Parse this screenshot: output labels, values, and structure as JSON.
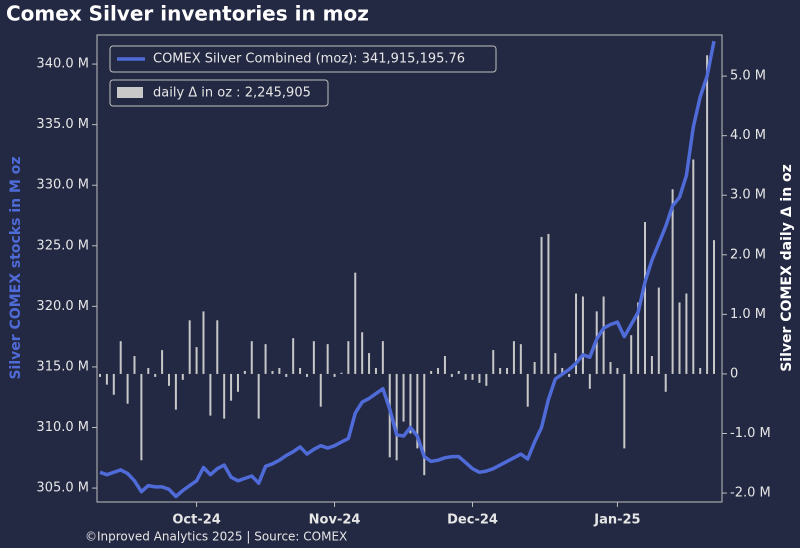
{
  "chart_data": {
    "type": "line",
    "title": "Comex Silver inventories in moz",
    "ylabel": "Silver COMEX stocks in M oz",
    "y2label": "Silver COMEX daily Δ in oz",
    "footer": "©Inproved Analytics 2025 | Source: COMEX",
    "categories": [
      null,
      null,
      null,
      null,
      null,
      null,
      null,
      null,
      null,
      null,
      null,
      null,
      null,
      null,
      "Oct-24",
      null,
      null,
      null,
      null,
      null,
      null,
      null,
      null,
      null,
      null,
      null,
      null,
      null,
      null,
      null,
      null,
      null,
      null,
      null,
      "Nov-24",
      null,
      null,
      null,
      null,
      null,
      null,
      null,
      null,
      null,
      null,
      null,
      null,
      null,
      null,
      null,
      null,
      null,
      null,
      null,
      "Dec-24",
      null,
      null,
      null,
      null,
      null,
      null,
      null,
      null,
      null,
      null,
      null,
      null,
      null,
      null,
      null,
      null,
      null,
      null,
      null,
      null,
      "Jan-25",
      null,
      null,
      null,
      null,
      null,
      null,
      null,
      null,
      null,
      null,
      null,
      null,
      null,
      null
    ],
    "series": [
      {
        "name": "COMEX Silver Combined (moz): 341,915,195.76",
        "type": "line",
        "color": "#4f6bd8",
        "values": [
          306.3,
          306.1,
          306.3,
          306.5,
          306.2,
          305.6,
          304.7,
          305.2,
          305.1,
          305.1,
          304.9,
          304.3,
          304.8,
          305.2,
          305.6,
          306.7,
          306.1,
          306.6,
          306.9,
          305.9,
          305.6,
          305.8,
          306.0,
          305.4,
          306.8,
          307.0,
          307.3,
          307.7,
          308.0,
          308.4,
          307.8,
          308.2,
          308.5,
          308.3,
          308.5,
          308.8,
          309.1,
          311.2,
          312.1,
          312.4,
          312.8,
          313.2,
          311.5,
          309.4,
          309.3,
          310.0,
          309.3,
          307.6,
          307.2,
          307.3,
          307.5,
          307.6,
          307.6,
          307.1,
          306.6,
          306.3,
          306.4,
          306.6,
          306.9,
          307.2,
          307.5,
          307.8,
          307.4,
          308.8,
          310.0,
          312.3,
          314.0,
          314.4,
          314.8,
          315.3,
          316.0,
          315.8,
          317.3,
          318.2,
          318.5,
          318.7,
          317.5,
          318.5,
          319.5,
          322.0,
          323.8,
          325.2,
          326.6,
          328.3,
          329.0,
          330.8,
          334.8,
          337.3,
          339.0,
          341.9
        ]
      },
      {
        "name": "daily Δ in oz : 2,245,905",
        "type": "bar",
        "axis": "y2",
        "color": "#c8c8c8",
        "values": [
          -50000,
          -180000,
          -350000,
          550000,
          -500000,
          300000,
          -1450000,
          100000,
          -50000,
          400000,
          -200000,
          -600000,
          -100000,
          900000,
          450000,
          1050000,
          -700000,
          900000,
          -750000,
          -450000,
          -300000,
          50000,
          550000,
          -750000,
          500000,
          50000,
          100000,
          -50000,
          600000,
          100000,
          -50000,
          550000,
          -550000,
          500000,
          -50000,
          20000,
          550000,
          1700000,
          700000,
          350000,
          100000,
          550000,
          -1400000,
          -1450000,
          -800000,
          -1000000,
          -1250000,
          -1700000,
          50000,
          100000,
          300000,
          -50000,
          50000,
          -100000,
          -100000,
          -150000,
          -200000,
          400000,
          100000,
          100000,
          550000,
          500000,
          -550000,
          200000,
          2300000,
          2350000,
          350000,
          100000,
          -50000,
          1350000,
          1300000,
          -250000,
          1050000,
          1300000,
          200000,
          100000,
          -1250000,
          650000,
          1200000,
          2550000,
          300000,
          1450000,
          -300000,
          3100000,
          1200000,
          1350000,
          3600000,
          100000,
          5350000,
          2245905
        ]
      }
    ],
    "ylim": [
      303.85,
      342.4
    ],
    "yticks": [
      {
        "value": 305,
        "label": "305.0 M"
      },
      {
        "value": 310,
        "label": "310.0 M"
      },
      {
        "value": 315,
        "label": "315.0 M"
      },
      {
        "value": 320,
        "label": "320.0 M"
      },
      {
        "value": 325,
        "label": "325.0 M"
      },
      {
        "value": 330,
        "label": "330.0 M"
      },
      {
        "value": 335,
        "label": "335.0 M"
      },
      {
        "value": 340,
        "label": "340.0 M"
      }
    ],
    "y2lim": [
      -2150000,
      5690000
    ],
    "y2ticks": [
      {
        "value": -2000000,
        "label": "-2.0 M"
      },
      {
        "value": -1000000,
        "label": "-1.0 M"
      },
      0,
      {
        "value": 1000000,
        "label": "1.0 M"
      },
      {
        "value": 2000000,
        "label": "2.0 M"
      },
      {
        "value": 3000000,
        "label": "3.0 M"
      },
      {
        "value": 4000000,
        "label": "4.0 M"
      },
      {
        "value": 5000000,
        "label": "5.0 M"
      }
    ],
    "legend": "upper left"
  }
}
